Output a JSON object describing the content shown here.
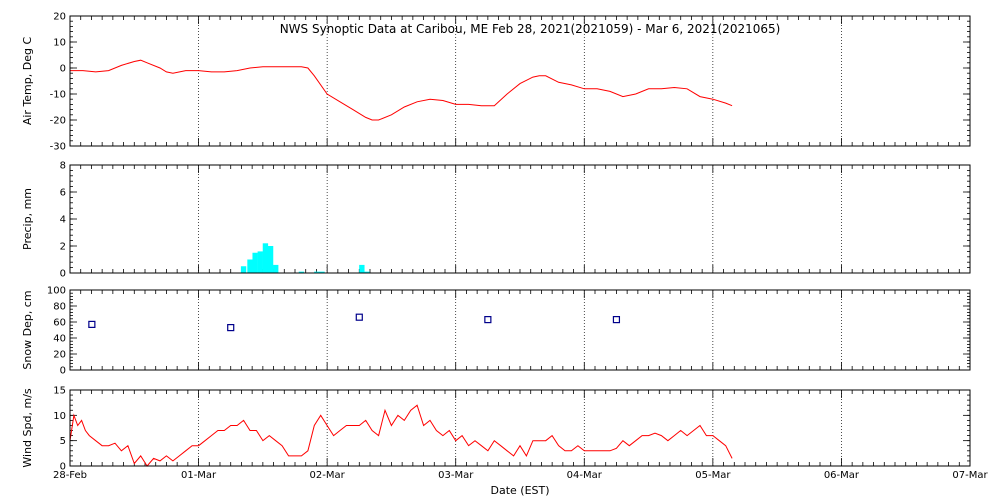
{
  "chart_data": {
    "title": "NWS Synoptic Data at Caribou, ME   Feb 28, 2021(2021059) - Mar  6, 2021(2021065)",
    "x_label": "Date (EST)",
    "x_range_days": [
      0,
      7
    ],
    "x_ticks": [
      {
        "day": 0,
        "label": "28-Feb"
      },
      {
        "day": 1,
        "label": "01-Mar"
      },
      {
        "day": 2,
        "label": "02-Mar"
      },
      {
        "day": 3,
        "label": "03-Mar"
      },
      {
        "day": 4,
        "label": "04-Mar"
      },
      {
        "day": 5,
        "label": "05-Mar"
      },
      {
        "day": 6,
        "label": "06-Mar"
      },
      {
        "day": 7,
        "label": "07-Mar"
      }
    ],
    "grid": "vertical dotted lines at each day",
    "panels": [
      {
        "id": "air-temp",
        "type": "line",
        "ylabel": "Air Temp, Deg C",
        "ylim": [
          -30,
          20
        ],
        "yticks": [
          -30,
          -20,
          -10,
          0,
          10,
          20
        ],
        "color": "#ff0000",
        "x": [
          0.0,
          0.1,
          0.2,
          0.3,
          0.4,
          0.5,
          0.55,
          0.6,
          0.7,
          0.75,
          0.8,
          0.9,
          1.0,
          1.1,
          1.2,
          1.3,
          1.4,
          1.5,
          1.6,
          1.7,
          1.8,
          1.85,
          1.9,
          2.0,
          2.1,
          2.2,
          2.3,
          2.35,
          2.4,
          2.5,
          2.6,
          2.7,
          2.8,
          2.9,
          3.0,
          3.1,
          3.2,
          3.3,
          3.4,
          3.5,
          3.6,
          3.65,
          3.7,
          3.8,
          3.9,
          4.0,
          4.1,
          4.2,
          4.3,
          4.4,
          4.5,
          4.6,
          4.7,
          4.8,
          4.9,
          5.0,
          5.1,
          5.15
        ],
        "y": [
          -1,
          -1,
          -1.5,
          -1,
          1,
          2.5,
          3,
          2,
          0,
          -1.5,
          -2,
          -1,
          -1,
          -1.5,
          -1.5,
          -1,
          0,
          0.5,
          0.5,
          0.5,
          0.5,
          0,
          -3,
          -10,
          -13,
          -16,
          -19,
          -20,
          -20,
          -18,
          -15,
          -13,
          -12,
          -12.5,
          -14,
          -14,
          -14.5,
          -14.5,
          -10,
          -6,
          -3.5,
          -3,
          -3,
          -5.5,
          -6.5,
          -8,
          -8,
          -9,
          -11,
          -10,
          -8,
          -8,
          -7.5,
          -8,
          -11,
          -12,
          -13.5,
          -14.5
        ]
      },
      {
        "id": "precip",
        "type": "bar",
        "ylabel": "Precip, mm",
        "ylim": [
          0,
          8
        ],
        "yticks": [
          0,
          2,
          4,
          6,
          8
        ],
        "color": "#00ffff",
        "bar_width_days": 0.0417,
        "x": [
          1.35,
          1.4,
          1.44,
          1.48,
          1.52,
          1.56,
          1.6,
          1.8,
          1.92,
          1.96,
          2.27,
          2.31
        ],
        "y": [
          0.5,
          1.0,
          1.5,
          1.6,
          2.2,
          2.0,
          0.6,
          0.1,
          0.1,
          0.1,
          0.6,
          0.1
        ]
      },
      {
        "id": "snow-depth",
        "type": "scatter",
        "ylabel": "Snow Dep, cm",
        "ylim": [
          0,
          100
        ],
        "yticks": [
          0,
          20,
          40,
          60,
          80,
          100
        ],
        "color": "#00008b",
        "x": [
          0.17,
          1.25,
          2.25,
          3.25,
          4.25
        ],
        "y": [
          57,
          53,
          66,
          63,
          63
        ]
      },
      {
        "id": "wind-speed",
        "type": "line",
        "ylabel": "Wind Spd, m/s",
        "ylim": [
          0,
          15
        ],
        "yticks": [
          0,
          5,
          10,
          15
        ],
        "color": "#ff0000",
        "x": [
          0.0,
          0.03,
          0.06,
          0.09,
          0.12,
          0.15,
          0.2,
          0.25,
          0.3,
          0.35,
          0.4,
          0.45,
          0.5,
          0.55,
          0.6,
          0.65,
          0.7,
          0.75,
          0.8,
          0.85,
          0.9,
          0.95,
          1.0,
          1.05,
          1.1,
          1.15,
          1.2,
          1.25,
          1.3,
          1.35,
          1.4,
          1.45,
          1.5,
          1.55,
          1.6,
          1.65,
          1.7,
          1.75,
          1.8,
          1.85,
          1.9,
          1.95,
          2.0,
          2.05,
          2.1,
          2.15,
          2.2,
          2.25,
          2.3,
          2.35,
          2.4,
          2.45,
          2.5,
          2.55,
          2.6,
          2.65,
          2.7,
          2.75,
          2.8,
          2.85,
          2.9,
          2.95,
          3.0,
          3.05,
          3.1,
          3.15,
          3.2,
          3.25,
          3.3,
          3.35,
          3.4,
          3.45,
          3.5,
          3.55,
          3.6,
          3.65,
          3.7,
          3.75,
          3.8,
          3.85,
          3.9,
          3.95,
          4.0,
          4.05,
          4.1,
          4.15,
          4.2,
          4.25,
          4.3,
          4.35,
          4.4,
          4.45,
          4.5,
          4.55,
          4.6,
          4.65,
          4.7,
          4.75,
          4.8,
          4.85,
          4.9,
          4.95,
          5.0,
          5.05,
          5.1,
          5.15
        ],
        "y": [
          5,
          10,
          8,
          9,
          7,
          6,
          5,
          4,
          4,
          4.5,
          3,
          4,
          0.5,
          2,
          0,
          1.5,
          1,
          2,
          1,
          2,
          3,
          4,
          4,
          5,
          6,
          7,
          7,
          8,
          8,
          9,
          7,
          7,
          5,
          6,
          5,
          4,
          2,
          2,
          2,
          3,
          8,
          10,
          8,
          6,
          7,
          8,
          8,
          8,
          9,
          7,
          6,
          11,
          8,
          10,
          9,
          11,
          12,
          8,
          9,
          7,
          6,
          7,
          5,
          6,
          4,
          5,
          4,
          3,
          5,
          4,
          3,
          2,
          4,
          2,
          5,
          5,
          5,
          6,
          4,
          3,
          3,
          4,
          3,
          3,
          3,
          3,
          3,
          3.5,
          5,
          4,
          5,
          6,
          6,
          6.5,
          6,
          5,
          6,
          7,
          6,
          7,
          8,
          6,
          6,
          5,
          4,
          1.5
        ]
      }
    ]
  }
}
